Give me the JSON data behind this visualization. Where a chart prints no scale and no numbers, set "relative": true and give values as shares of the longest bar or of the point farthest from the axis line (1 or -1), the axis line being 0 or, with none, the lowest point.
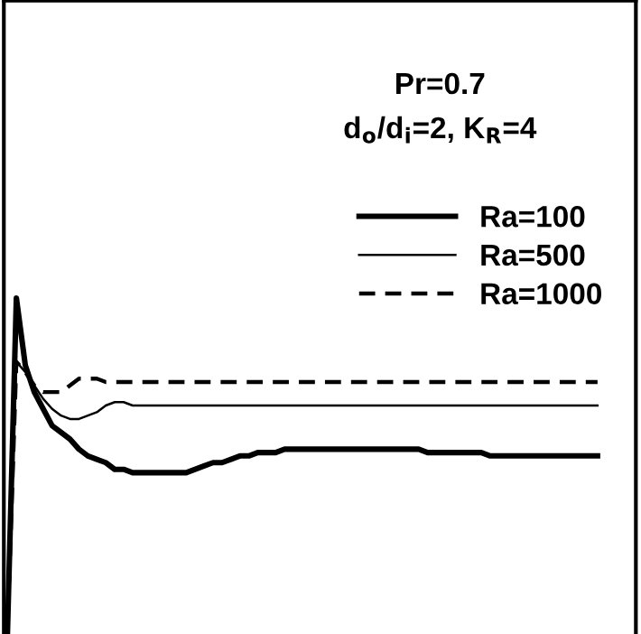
{
  "chart_data": {
    "type": "line",
    "relative": true,
    "legend": "top right",
    "marker": "none",
    "categories": [
      null,
      null,
      null,
      null,
      null,
      null,
      null,
      null,
      null,
      null,
      null,
      null,
      null,
      null,
      null,
      null,
      null,
      null,
      null,
      null,
      null,
      null,
      null,
      null,
      null,
      null,
      null,
      null,
      null,
      null,
      null,
      null,
      null,
      null,
      null,
      null,
      null,
      null,
      null,
      null,
      null,
      null,
      null,
      null,
      null,
      null,
      null,
      null,
      null,
      null,
      null,
      null,
      null,
      null,
      null,
      null,
      null,
      null,
      null,
      null,
      null,
      null,
      null,
      null,
      null,
      null,
      null
    ],
    "annotations": [
      "Pr=0.7",
      "d$_{o}$/d$_{i}$=2, K$_{R}$=4"
    ],
    "series": [
      {
        "name": "Ra=100",
        "color": "#000000",
        "line_style": "solid",
        "values": [
          0,
          1.0,
          0.8,
          0.72,
          0.67,
          0.62,
          0.6,
          0.58,
          0.55,
          0.53,
          0.52,
          0.51,
          0.49,
          0.49,
          0.48,
          0.48,
          0.48,
          0.48,
          0.48,
          0.48,
          0.48,
          0.49,
          0.5,
          0.51,
          0.51,
          0.52,
          0.53,
          0.53,
          0.54,
          0.54,
          0.54,
          0.55,
          0.55,
          0.55,
          0.55,
          0.55,
          0.55,
          0.55,
          0.55,
          0.55,
          0.55,
          0.55,
          0.55,
          0.55,
          0.55,
          0.55,
          0.55,
          0.54,
          0.54,
          0.54,
          0.54,
          0.54,
          0.54,
          0.54,
          0.53,
          0.53,
          0.53,
          0.53,
          0.53,
          0.53,
          0.53,
          0.53,
          0.53,
          0.53,
          0.53,
          0.53,
          0.53
        ]
      },
      {
        "name": "Ra=500",
        "color": "#000000",
        "line_style": "solid",
        "values": [
          0,
          0.81,
          0.78,
          0.74,
          0.7,
          0.67,
          0.65,
          0.64,
          0.64,
          0.65,
          0.66,
          0.68,
          0.69,
          0.69,
          0.68,
          0.68,
          0.68,
          0.68,
          0.68,
          0.68,
          0.68,
          0.68,
          0.68,
          0.68,
          0.68,
          0.68,
          0.68,
          0.68,
          0.68,
          0.68,
          0.68,
          0.68,
          0.68,
          0.68,
          0.68,
          0.68,
          0.68,
          0.68,
          0.68,
          0.68,
          0.68,
          0.68,
          0.68,
          0.68,
          0.68,
          0.68,
          0.68,
          0.68,
          0.68,
          0.68,
          0.68,
          0.68,
          0.68,
          0.68,
          0.68,
          0.68,
          0.68,
          0.68,
          0.68,
          0.68,
          0.68,
          0.68,
          0.68,
          0.68,
          0.68,
          0.68,
          0.68
        ]
      },
      {
        "name": "Ra=1000",
        "color": "#000000",
        "line_style": "dashed",
        "values": [
          0,
          0.81,
          0.78,
          0.74,
          0.72,
          0.72,
          0.72,
          0.74,
          0.76,
          0.76,
          0.76,
          0.75,
          0.75,
          0.75,
          0.75,
          0.75,
          0.75,
          0.75,
          0.75,
          0.75,
          0.75,
          0.75,
          0.75,
          0.75,
          0.75,
          0.75,
          0.75,
          0.75,
          0.75,
          0.75,
          0.75,
          0.75,
          0.75,
          0.75,
          0.75,
          0.75,
          0.75,
          0.75,
          0.75,
          0.75,
          0.75,
          0.75,
          0.75,
          0.75,
          0.75,
          0.75,
          0.75,
          0.75,
          0.75,
          0.75,
          0.75,
          0.75,
          0.75,
          0.75,
          0.75,
          0.75,
          0.75,
          0.75,
          0.75,
          0.75,
          0.75,
          0.75,
          0.75,
          0.75,
          0.75,
          0.75,
          0.75
        ]
      }
    ]
  }
}
